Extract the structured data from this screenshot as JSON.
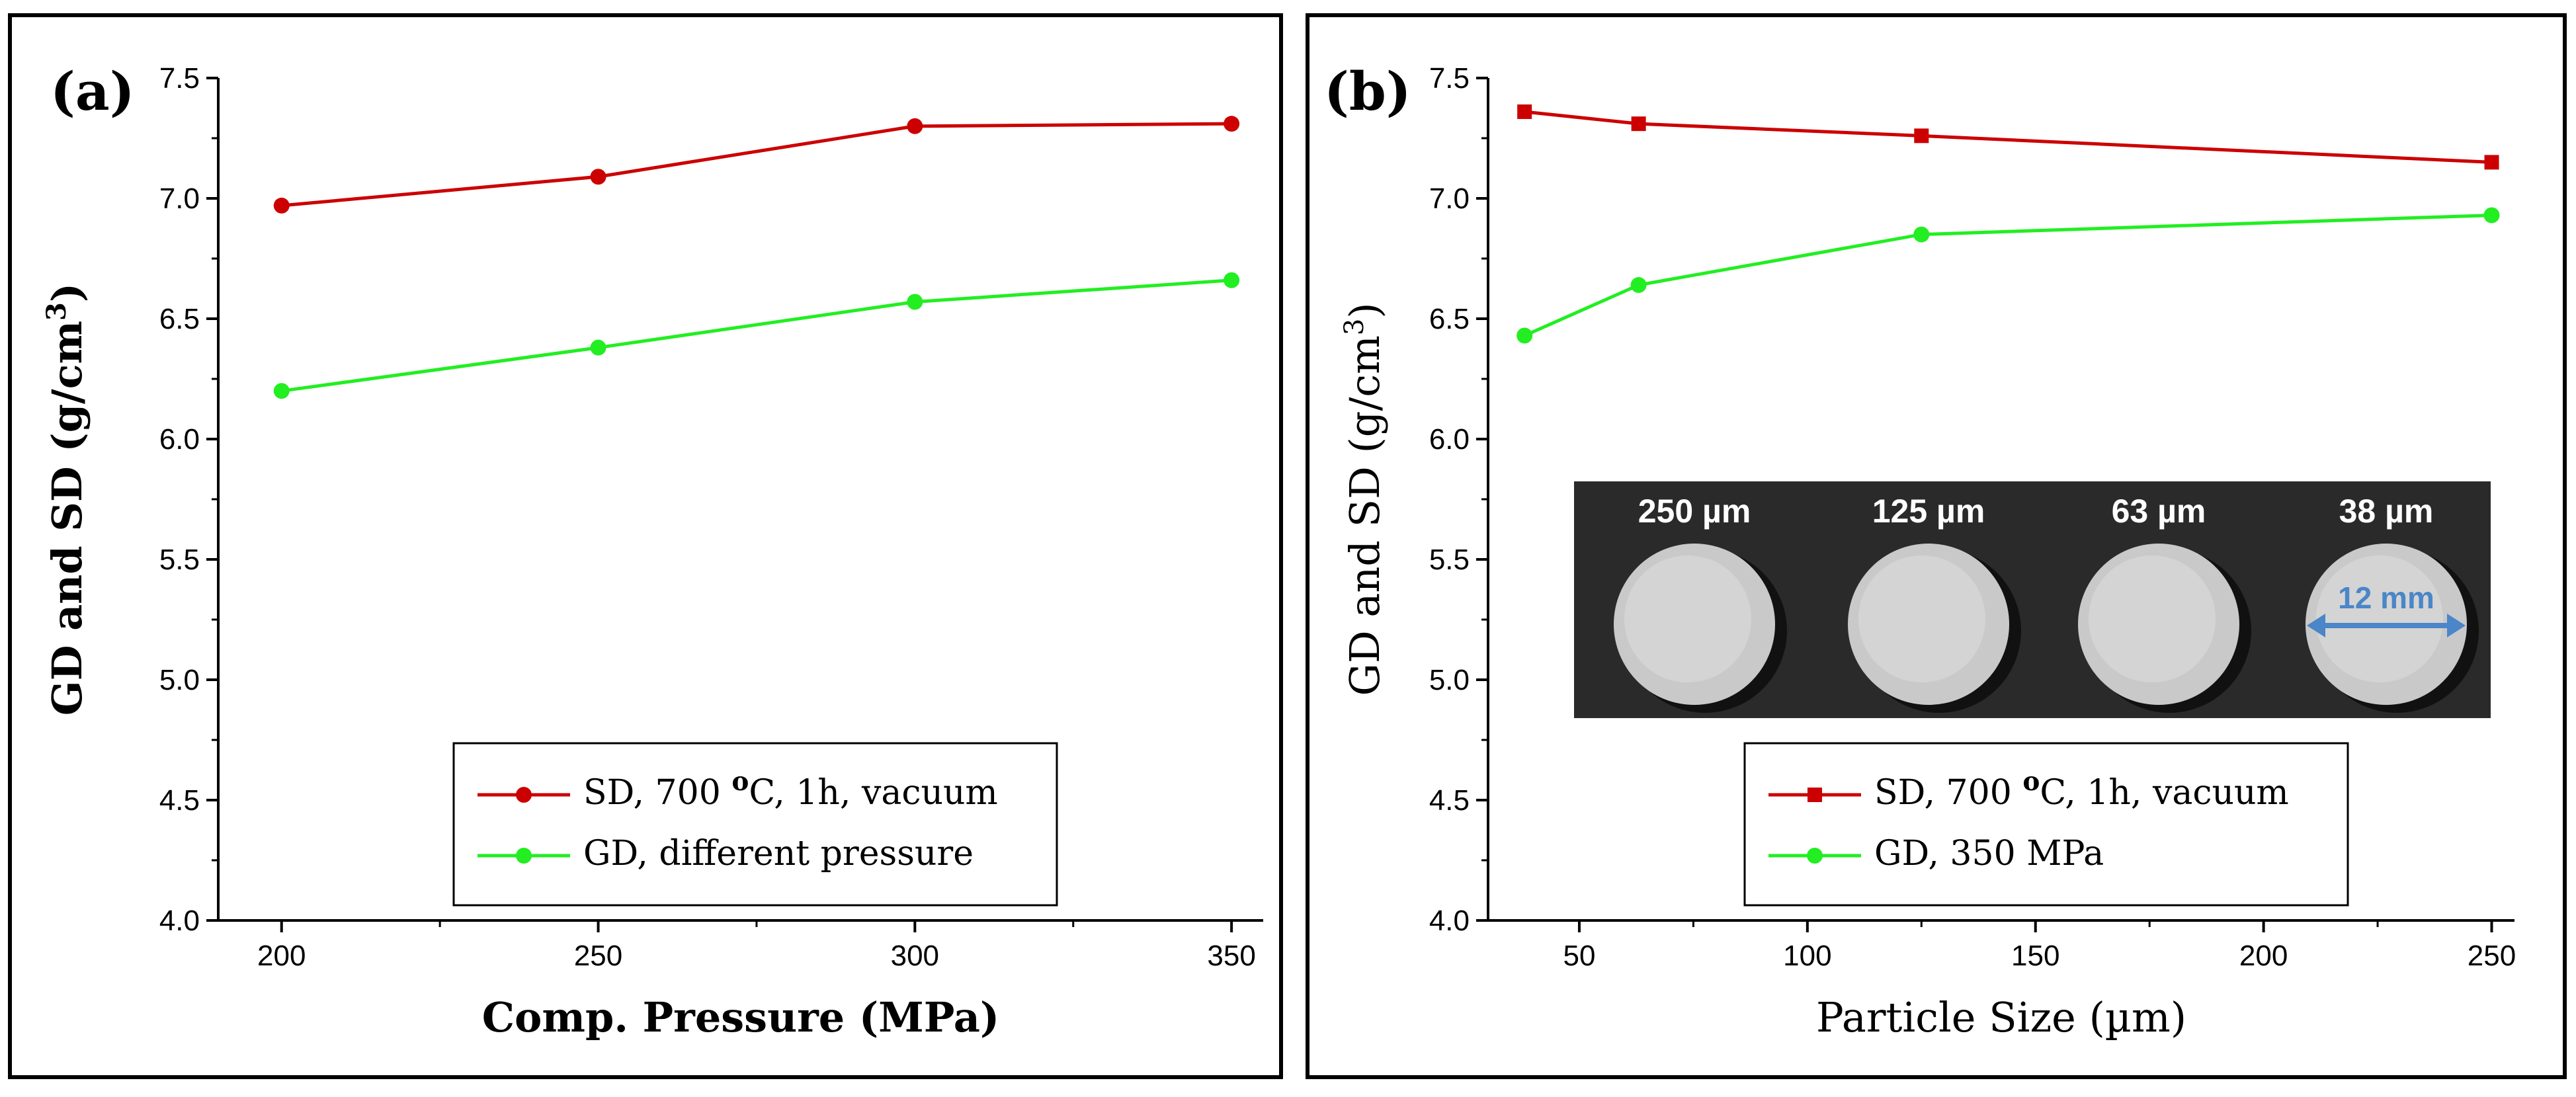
{
  "chart_data": [
    {
      "type": "line",
      "panel_label": "(a)",
      "xlabel": "Comp. Pressure (MPa)",
      "ylabel": "GD and SD (g/cm",
      "ylabel_sup": "3",
      "ylabel_close": ")",
      "xlim": [
        190,
        355
      ],
      "ylim": [
        4.0,
        7.5
      ],
      "x_ticks": [
        200,
        250,
        300,
        350
      ],
      "y_ticks": [
        4.0,
        4.5,
        5.0,
        5.5,
        6.0,
        6.5,
        7.0,
        7.5
      ],
      "x_tick_labels": [
        "200",
        "250",
        "300",
        "350"
      ],
      "y_tick_labels": [
        "4.0",
        "4.5",
        "5.0",
        "5.5",
        "6.0",
        "6.5",
        "7.0",
        "7.5"
      ],
      "legend_position": "bottom-right",
      "series": [
        {
          "label_prefix": "SD, 700 ",
          "label_sup": "o",
          "label_suffix": "C, 1h, vacuum",
          "color": "#cc0000",
          "marker": "circle",
          "x": [
            200,
            250,
            300,
            350
          ],
          "y": [
            6.97,
            7.09,
            7.3,
            7.31
          ]
        },
        {
          "label_prefix": "GD, different pressure",
          "label_sup": "",
          "label_suffix": "",
          "color": "#22ee22",
          "marker": "circle",
          "x": [
            200,
            250,
            300,
            350
          ],
          "y": [
            6.2,
            6.38,
            6.57,
            6.66
          ]
        }
      ]
    },
    {
      "type": "line",
      "panel_label": "(b)",
      "xlabel": "Particle Size (µm)",
      "ylabel": "GD and SD (g/cm",
      "ylabel_sup": "3",
      "ylabel_close": ")",
      "xlim": [
        30,
        255
      ],
      "ylim": [
        4.0,
        7.5
      ],
      "x_ticks": [
        50,
        100,
        150,
        200,
        250
      ],
      "y_ticks": [
        4.0,
        4.5,
        5.0,
        5.5,
        6.0,
        6.5,
        7.0,
        7.5
      ],
      "x_tick_labels": [
        "50",
        "100",
        "150",
        "200",
        "250"
      ],
      "y_tick_labels": [
        "4.0",
        "4.5",
        "5.0",
        "5.5",
        "6.0",
        "6.5",
        "7.0",
        "7.5"
      ],
      "legend_position": "bottom-center",
      "series": [
        {
          "label_prefix": "SD, 700 ",
          "label_sup": "o",
          "label_suffix": "C, 1h, vacuum",
          "color": "#cc0000",
          "marker": "square",
          "x": [
            38,
            63,
            125,
            250
          ],
          "y": [
            7.36,
            7.31,
            7.26,
            7.15
          ]
        },
        {
          "label_prefix": "GD, 350 MPa",
          "label_sup": "",
          "label_suffix": "",
          "color": "#22ee22",
          "marker": "circle",
          "x": [
            38,
            63,
            125,
            250
          ],
          "y": [
            6.43,
            6.64,
            6.85,
            6.93
          ]
        }
      ],
      "inset": {
        "sample_labels": [
          "250 µm",
          "125 µm",
          "63 µm",
          "38 µm"
        ],
        "dimension_label": "12 mm",
        "dimension_color": "#4a86c8"
      }
    }
  ]
}
